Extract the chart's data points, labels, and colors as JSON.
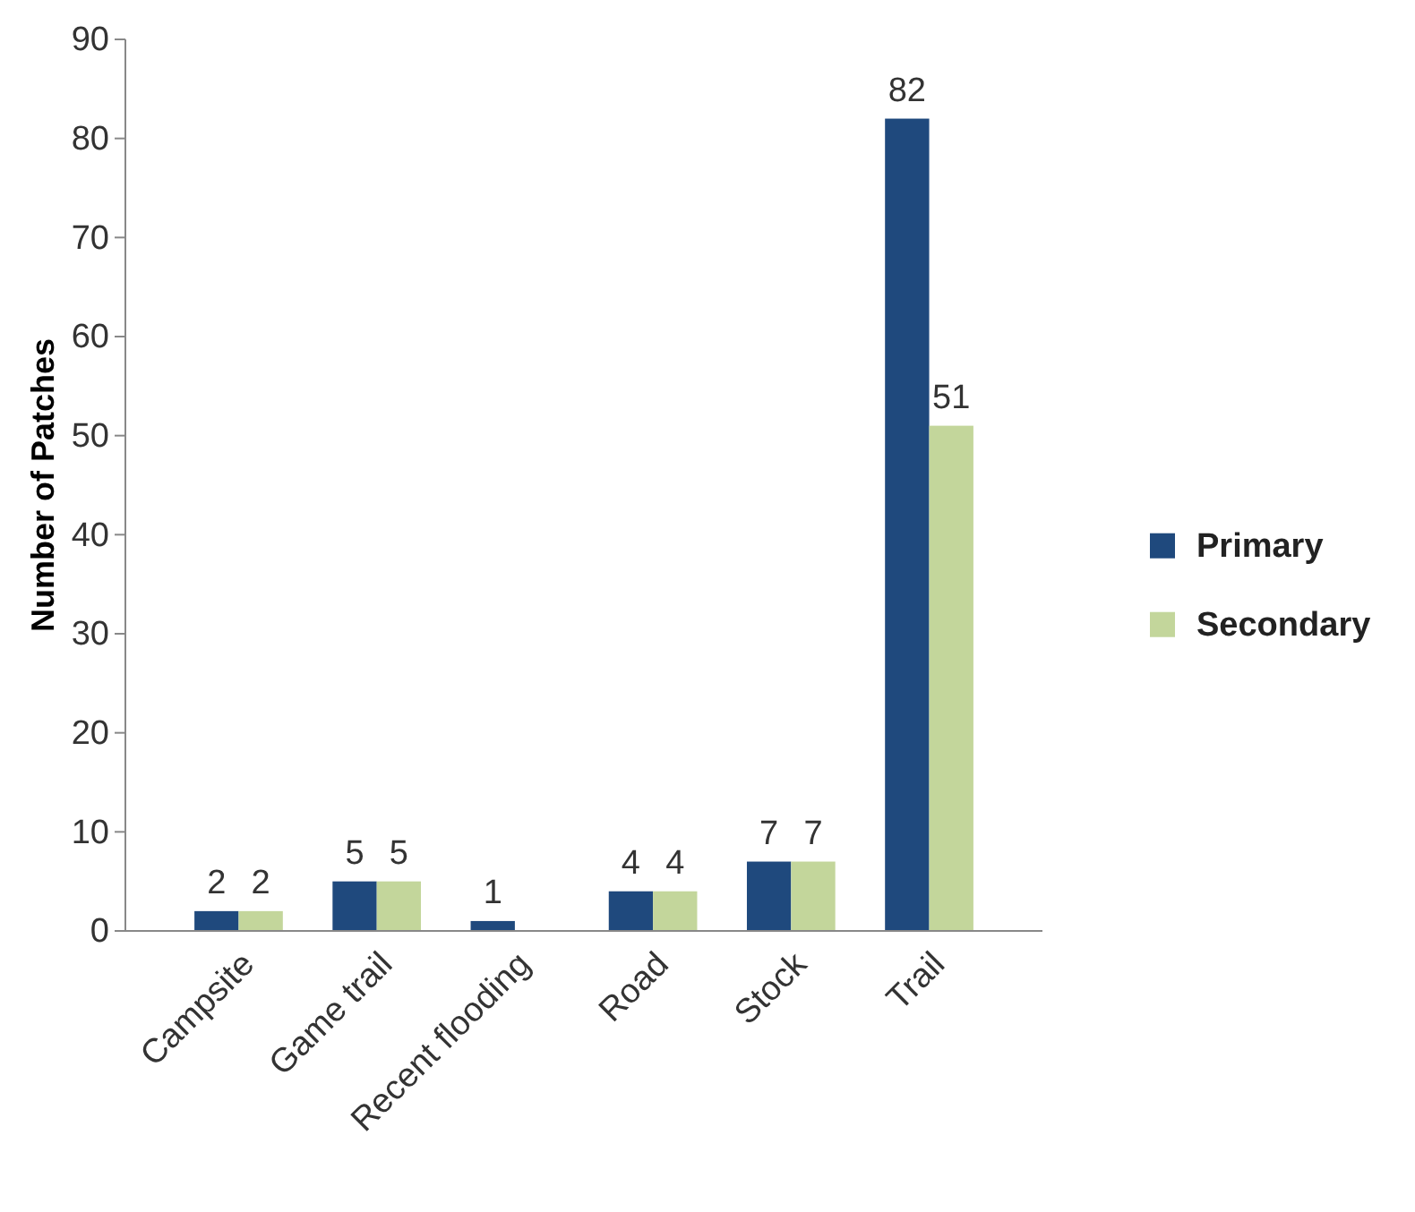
{
  "chart_data": {
    "type": "bar",
    "ylabel": "Number of Patches",
    "categories": [
      "Campsite",
      "Game trail",
      "Recent flooding",
      "Road",
      "Stock",
      "Trail"
    ],
    "series": [
      {
        "name": "Primary",
        "color": "#1f497d",
        "values": [
          2,
          5,
          1,
          4,
          7,
          82
        ],
        "value_labels": [
          "2",
          "5",
          "1",
          "4",
          "7",
          "82"
        ]
      },
      {
        "name": "Secondary",
        "color": "#c3d69b",
        "values": [
          2,
          5,
          0,
          4,
          7,
          51
        ],
        "value_labels": [
          "2",
          "5",
          null,
          "4",
          "7",
          "51"
        ]
      }
    ],
    "ylim": [
      0,
      90
    ],
    "yticks": [
      0,
      10,
      20,
      30,
      40,
      50,
      60,
      70,
      80,
      90
    ],
    "grid": false,
    "legend": "right"
  }
}
